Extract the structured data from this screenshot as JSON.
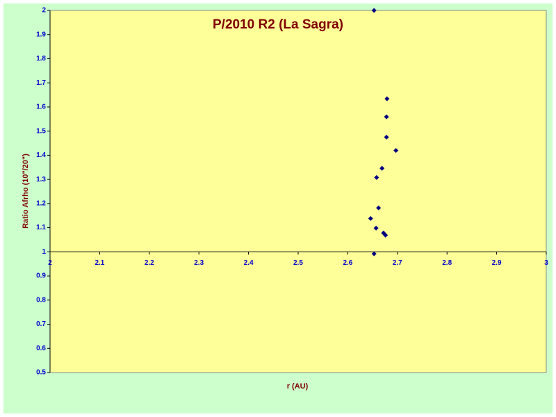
{
  "chart_data": {
    "type": "scatter",
    "title": "P/2010 R2 (La Sagra)",
    "x_label": "r (AU)",
    "y_label": "Ratio Afrho (10\"/20\")",
    "series": [
      {
        "color": "#000080",
        "x": [
          2.653,
          2.679,
          2.678,
          2.678,
          2.697,
          2.669,
          2.658,
          2.662,
          2.646,
          2.657,
          2.672,
          2.676,
          2.653
        ],
        "values": [
          2.0,
          1.634,
          1.559,
          1.475,
          1.42,
          1.346,
          1.308,
          1.182,
          1.138,
          1.098,
          1.078,
          1.069,
          0.992
        ]
      }
    ],
    "xlim": [
      2,
      3
    ],
    "xticks": [
      2,
      2.1,
      2.2,
      2.3,
      2.4,
      2.5,
      2.6,
      2.7,
      2.8,
      2.9,
      3
    ],
    "ylim": [
      0.5,
      2
    ],
    "yticks": [
      0.5,
      0.6,
      0.7,
      0.8,
      0.9,
      1,
      1.1,
      1.2,
      1.3,
      1.4,
      1.5,
      1.6,
      1.7,
      1.8,
      1.9,
      2
    ],
    "x_axis_crosses_at": 1
  }
}
